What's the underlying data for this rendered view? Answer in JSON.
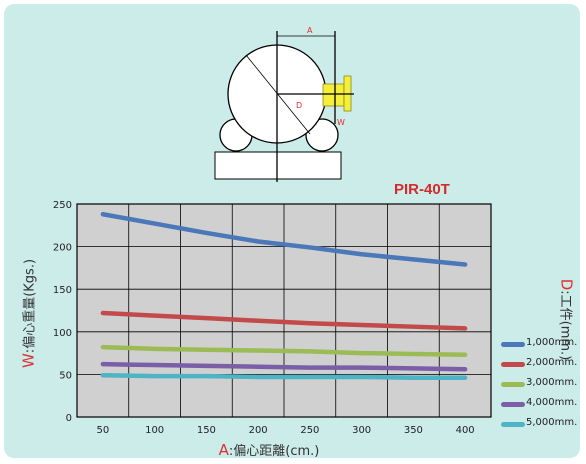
{
  "chart_data": {
    "type": "line",
    "title": "PIR-40T",
    "ylabel": {
      "accent": "W",
      "text": ":偏心重量(Kgs.)"
    },
    "xlabel": {
      "accent": "A",
      "text": ":偏心距離(cm.)"
    },
    "series_label": {
      "accent": "D",
      "text": ":工件(mm.)"
    },
    "diagram_labels": {
      "a": "A",
      "d": "D",
      "w": "W"
    },
    "x": [
      50,
      100,
      150,
      200,
      250,
      300,
      350,
      400
    ],
    "xlim": [
      25,
      425
    ],
    "ylim": [
      0,
      250
    ],
    "yticks": [
      0,
      50,
      100,
      150,
      200,
      250
    ],
    "grid": true,
    "legend_position": "right",
    "series": [
      {
        "name": "1,000mm.",
        "color": "#4a78b8",
        "values": [
          238,
          227,
          216,
          206,
          199,
          191,
          185,
          179
        ]
      },
      {
        "name": "2,000mm.",
        "color": "#c24a4a",
        "values": [
          122,
          119,
          116,
          113,
          110,
          108,
          106,
          104
        ]
      },
      {
        "name": "3,000mm.",
        "color": "#9bbb55",
        "values": [
          82,
          80,
          79,
          78,
          77,
          75,
          74,
          73
        ]
      },
      {
        "name": "4,000mm.",
        "color": "#7b5ea8",
        "values": [
          62,
          61,
          60,
          59,
          58,
          58,
          57,
          56
        ]
      },
      {
        "name": "5,000mm.",
        "color": "#4fb3c6",
        "values": [
          49,
          48,
          48,
          47,
          47,
          47,
          46,
          46
        ]
      }
    ]
  }
}
